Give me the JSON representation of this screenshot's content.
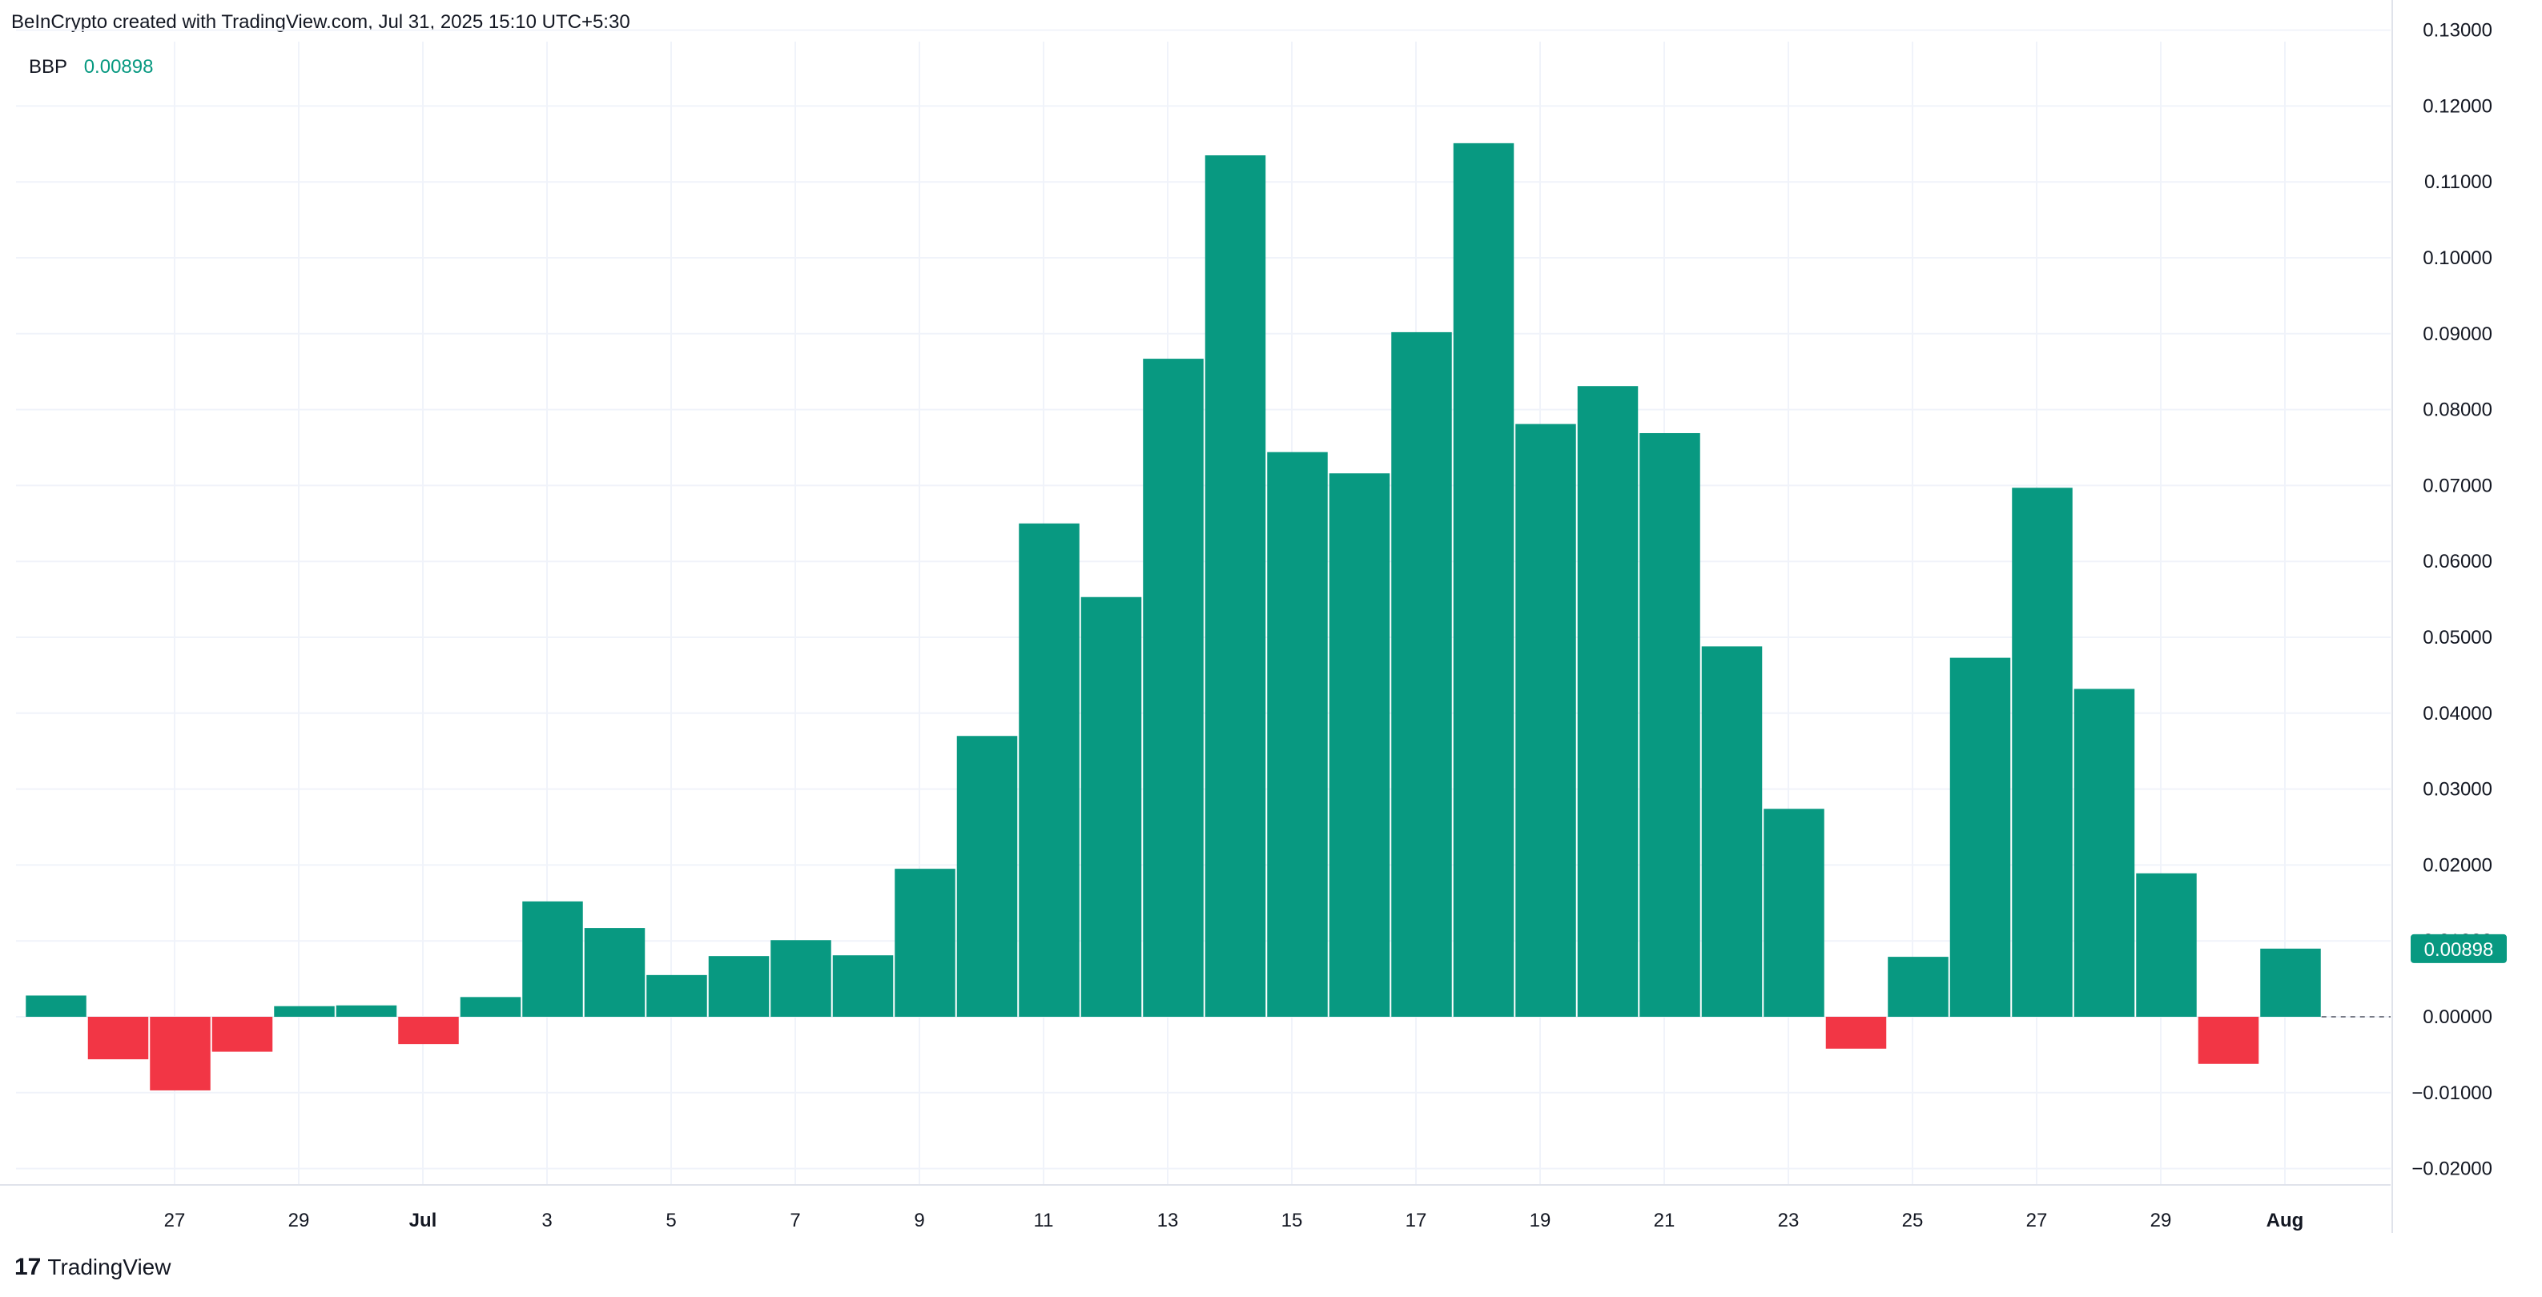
{
  "header": {
    "text": "BeInCrypto created with TradingView.com, Jul 31, 2025 15:10 UTC+5:30"
  },
  "legend": {
    "name": "BBP",
    "value": "0.00898"
  },
  "footer": {
    "logo_glyph": "17",
    "brand": "TradingView"
  },
  "colors": {
    "positive": "#089981",
    "negative": "#f23645",
    "grid": "#f0f3fa",
    "text": "#131722"
  },
  "chart_data": {
    "type": "bar",
    "series": [
      {
        "name": "BBP",
        "x": [
          "2025-06-25",
          "2025-06-26",
          "2025-06-27",
          "2025-06-28",
          "2025-06-29",
          "2025-06-30",
          "2025-07-01",
          "2025-07-02",
          "2025-07-03",
          "2025-07-04",
          "2025-07-05",
          "2025-07-06",
          "2025-07-07",
          "2025-07-08",
          "2025-07-09",
          "2025-07-10",
          "2025-07-11",
          "2025-07-12",
          "2025-07-13",
          "2025-07-14",
          "2025-07-15",
          "2025-07-16",
          "2025-07-17",
          "2025-07-18",
          "2025-07-19",
          "2025-07-20",
          "2025-07-21",
          "2025-07-22",
          "2025-07-23",
          "2025-07-24",
          "2025-07-25",
          "2025-07-26",
          "2025-07-27",
          "2025-07-28",
          "2025-07-29",
          "2025-07-30",
          "2025-07-31"
        ],
        "values": [
          0.0028,
          -0.0056,
          -0.0097,
          -0.0046,
          0.0014,
          0.0015,
          -0.0036,
          0.0026,
          0.0152,
          0.0117,
          0.0055,
          0.008,
          0.0101,
          0.0081,
          0.0195,
          0.037,
          0.065,
          0.0553,
          0.0867,
          0.1135,
          0.0744,
          0.0716,
          0.0902,
          0.1151,
          0.0781,
          0.0831,
          0.0769,
          0.0488,
          0.0274,
          -0.0042,
          0.0079,
          0.0473,
          0.0697,
          0.0432,
          0.0189,
          -0.0062,
          0.00898
        ]
      }
    ],
    "x_ticks": [
      "27",
      "29",
      "Jul",
      "3",
      "5",
      "7",
      "9",
      "11",
      "13",
      "15",
      "17",
      "19",
      "21",
      "23",
      "25",
      "27",
      "29",
      "Aug"
    ],
    "y_ticks": [
      "0.13000",
      "0.12000",
      "0.11000",
      "0.10000",
      "0.09000",
      "0.08000",
      "0.07000",
      "0.06000",
      "0.05000",
      "0.04000",
      "0.03000",
      "0.02000",
      "0.01000",
      "0.00000",
      "−0.01000",
      "−0.02000"
    ],
    "ylim": [
      -0.02,
      0.13
    ],
    "last_value_label": "0.00898",
    "grid": true
  }
}
